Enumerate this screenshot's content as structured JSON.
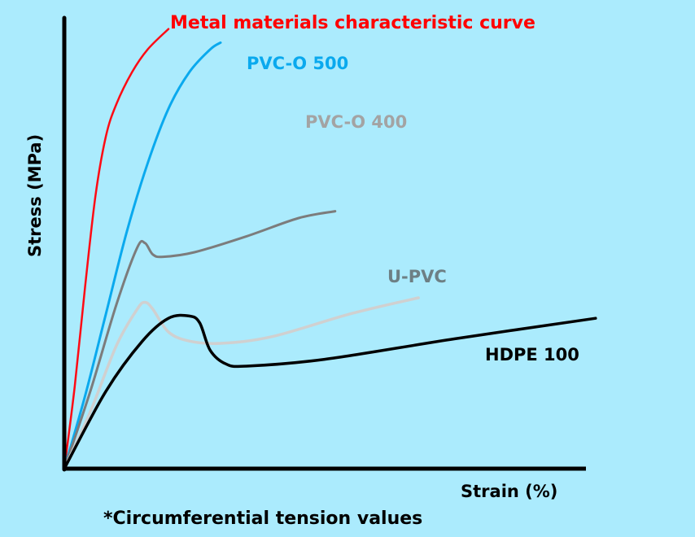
{
  "chart_data": {
    "type": "line",
    "title": "",
    "xlabel": "Strain (%)",
    "ylabel": "Stress (MPa)",
    "footnote": "*Circumferential tension values",
    "xlim": [
      0,
      100
    ],
    "ylim": [
      0,
      100
    ],
    "grid": false,
    "legend": "inline labels",
    "axis_color": "#000000",
    "background": "#abebfd",
    "series": [
      {
        "name": "Metal materials characteristic curve",
        "color": "#ff0a14",
        "label_color": "#ff0000",
        "points": [
          [
            0,
            0
          ],
          [
            2,
            18
          ],
          [
            4,
            40
          ],
          [
            6,
            60
          ],
          [
            8,
            73
          ],
          [
            10,
            80
          ],
          [
            13,
            87
          ],
          [
            16,
            92
          ],
          [
            20,
            96.5
          ]
        ]
      },
      {
        "name": "PVC-O 500",
        "color": "#0aa9ee",
        "label_color": "#0aa9ee",
        "points": [
          [
            0,
            0
          ],
          [
            4,
            16
          ],
          [
            8,
            34
          ],
          [
            12,
            52
          ],
          [
            16,
            67
          ],
          [
            20,
            79
          ],
          [
            24,
            87
          ],
          [
            28,
            92
          ],
          [
            30,
            93.5
          ]
        ]
      },
      {
        "name": "PVC-O 400",
        "color": "#7c7c7c",
        "label_color": "#a3a3a3",
        "points": [
          [
            0,
            0
          ],
          [
            5,
            17
          ],
          [
            10,
            36
          ],
          [
            14,
            48.5
          ],
          [
            15.5,
            49.5
          ],
          [
            17,
            47
          ],
          [
            19,
            46.5
          ],
          [
            25,
            47.5
          ],
          [
            35,
            51
          ],
          [
            45,
            55
          ],
          [
            52,
            56.5
          ]
        ]
      },
      {
        "name": "U-PVC",
        "color": "#d0d0d0",
        "label_color": "#6d7f84",
        "points": [
          [
            0,
            0
          ],
          [
            5,
            12.5
          ],
          [
            10,
            27
          ],
          [
            14,
            35
          ],
          [
            15.5,
            36.5
          ],
          [
            17,
            35
          ],
          [
            20,
            30
          ],
          [
            24,
            28
          ],
          [
            30,
            27.5
          ],
          [
            40,
            29
          ],
          [
            55,
            34
          ],
          [
            68,
            37.5
          ]
        ]
      },
      {
        "name": "HDPE 100",
        "color": "#000000",
        "label_color": "#000000",
        "points": [
          [
            0,
            0
          ],
          [
            8,
            17
          ],
          [
            15,
            28
          ],
          [
            20,
            33
          ],
          [
            24,
            33.5
          ],
          [
            26,
            32
          ],
          [
            28,
            26
          ],
          [
            31,
            23
          ],
          [
            35,
            22.5
          ],
          [
            50,
            24
          ],
          [
            75,
            28.5
          ],
          [
            102,
            33
          ]
        ]
      }
    ]
  }
}
